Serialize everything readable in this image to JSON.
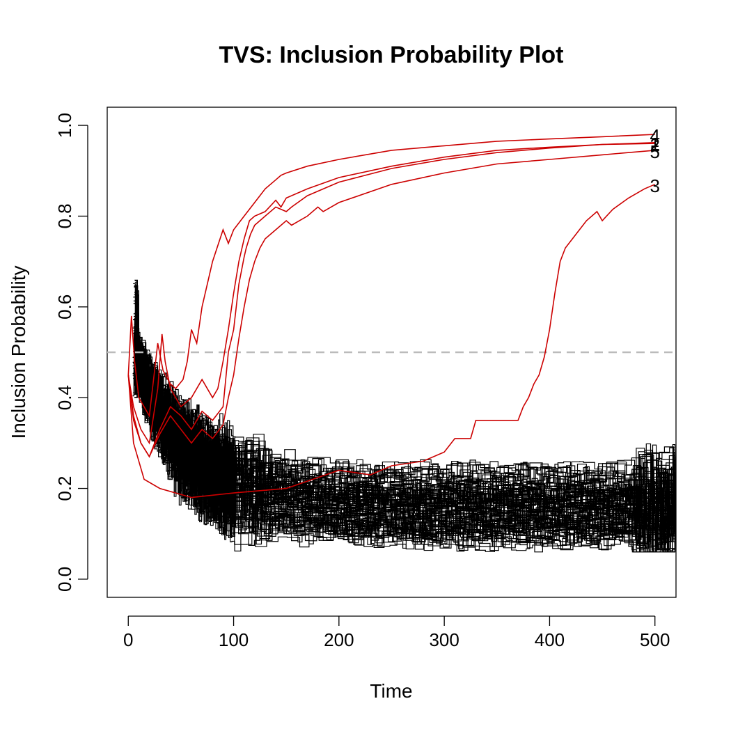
{
  "chart_data": {
    "type": "line",
    "title": "TVS: Inclusion Probability Plot",
    "xlabel": "Time",
    "ylabel": "Inclusion Probability",
    "xlim": [
      -20,
      520
    ],
    "ylim": [
      -0.04,
      1.04
    ],
    "x_ticks": [
      0,
      100,
      200,
      300,
      400,
      500
    ],
    "y_ticks": [
      "0.0",
      "0.2",
      "0.4",
      "0.6",
      "0.8",
      "1.0"
    ],
    "threshold": 0.5,
    "colors": {
      "selected": "#cc0000",
      "other": "#000000",
      "threshold": "#bbbbbb"
    },
    "series": [
      {
        "label": "4",
        "color": "#cc0000",
        "points": [
          [
            0,
            0.45
          ],
          [
            3,
            0.58
          ],
          [
            6,
            0.48
          ],
          [
            10,
            0.4
          ],
          [
            20,
            0.36
          ],
          [
            28,
            0.52
          ],
          [
            33,
            0.46
          ],
          [
            40,
            0.43
          ],
          [
            45,
            0.42
          ],
          [
            52,
            0.44
          ],
          [
            56,
            0.48
          ],
          [
            60,
            0.55
          ],
          [
            65,
            0.52
          ],
          [
            70,
            0.6
          ],
          [
            80,
            0.7
          ],
          [
            90,
            0.77
          ],
          [
            95,
            0.74
          ],
          [
            100,
            0.77
          ],
          [
            110,
            0.8
          ],
          [
            120,
            0.83
          ],
          [
            130,
            0.86
          ],
          [
            140,
            0.88
          ],
          [
            145,
            0.89
          ],
          [
            150,
            0.895
          ],
          [
            170,
            0.91
          ],
          [
            200,
            0.925
          ],
          [
            250,
            0.945
          ],
          [
            300,
            0.955
          ],
          [
            350,
            0.965
          ],
          [
            400,
            0.97
          ],
          [
            450,
            0.975
          ],
          [
            500,
            0.98
          ]
        ]
      },
      {
        "label": "1",
        "color": "#cc0000",
        "points": [
          [
            0,
            0.45
          ],
          [
            5,
            0.38
          ],
          [
            12,
            0.33
          ],
          [
            20,
            0.3
          ],
          [
            28,
            0.42
          ],
          [
            32,
            0.54
          ],
          [
            35,
            0.48
          ],
          [
            40,
            0.42
          ],
          [
            50,
            0.38
          ],
          [
            60,
            0.4
          ],
          [
            70,
            0.44
          ],
          [
            80,
            0.4
          ],
          [
            85,
            0.42
          ],
          [
            90,
            0.48
          ],
          [
            95,
            0.55
          ],
          [
            100,
            0.63
          ],
          [
            105,
            0.7
          ],
          [
            110,
            0.75
          ],
          [
            115,
            0.79
          ],
          [
            120,
            0.8
          ],
          [
            130,
            0.81
          ],
          [
            140,
            0.835
          ],
          [
            145,
            0.82
          ],
          [
            150,
            0.84
          ],
          [
            170,
            0.86
          ],
          [
            200,
            0.885
          ],
          [
            250,
            0.91
          ],
          [
            300,
            0.93
          ],
          [
            350,
            0.945
          ],
          [
            400,
            0.952
          ],
          [
            450,
            0.958
          ],
          [
            500,
            0.962
          ]
        ]
      },
      {
        "label": "2",
        "color": "#cc0000",
        "points": [
          [
            0,
            0.45
          ],
          [
            5,
            0.36
          ],
          [
            12,
            0.3
          ],
          [
            20,
            0.27
          ],
          [
            30,
            0.33
          ],
          [
            40,
            0.38
          ],
          [
            50,
            0.36
          ],
          [
            60,
            0.33
          ],
          [
            70,
            0.37
          ],
          [
            80,
            0.35
          ],
          [
            90,
            0.38
          ],
          [
            95,
            0.5
          ],
          [
            100,
            0.55
          ],
          [
            105,
            0.65
          ],
          [
            110,
            0.71
          ],
          [
            112,
            0.73
          ],
          [
            116,
            0.76
          ],
          [
            120,
            0.78
          ],
          [
            130,
            0.8
          ],
          [
            140,
            0.82
          ],
          [
            150,
            0.81
          ],
          [
            155,
            0.82
          ],
          [
            170,
            0.845
          ],
          [
            200,
            0.875
          ],
          [
            250,
            0.905
          ],
          [
            300,
            0.925
          ],
          [
            350,
            0.94
          ],
          [
            400,
            0.95
          ],
          [
            450,
            0.958
          ],
          [
            500,
            0.96
          ]
        ]
      },
      {
        "label": "5",
        "color": "#cc0000",
        "points": [
          [
            0,
            0.45
          ],
          [
            5,
            0.35
          ],
          [
            12,
            0.3
          ],
          [
            20,
            0.27
          ],
          [
            30,
            0.32
          ],
          [
            40,
            0.36
          ],
          [
            50,
            0.33
          ],
          [
            60,
            0.3
          ],
          [
            70,
            0.33
          ],
          [
            80,
            0.31
          ],
          [
            90,
            0.34
          ],
          [
            95,
            0.4
          ],
          [
            100,
            0.45
          ],
          [
            105,
            0.53
          ],
          [
            110,
            0.6
          ],
          [
            115,
            0.66
          ],
          [
            120,
            0.7
          ],
          [
            125,
            0.73
          ],
          [
            130,
            0.75
          ],
          [
            140,
            0.77
          ],
          [
            150,
            0.79
          ],
          [
            155,
            0.78
          ],
          [
            170,
            0.8
          ],
          [
            180,
            0.82
          ],
          [
            185,
            0.81
          ],
          [
            200,
            0.83
          ],
          [
            250,
            0.87
          ],
          [
            300,
            0.895
          ],
          [
            350,
            0.915
          ],
          [
            400,
            0.925
          ],
          [
            450,
            0.935
          ],
          [
            500,
            0.945
          ]
        ]
      },
      {
        "label": "3",
        "color": "#cc0000",
        "points": [
          [
            0,
            0.45
          ],
          [
            5,
            0.3
          ],
          [
            15,
            0.22
          ],
          [
            30,
            0.2
          ],
          [
            60,
            0.18
          ],
          [
            100,
            0.19
          ],
          [
            150,
            0.2
          ],
          [
            200,
            0.24
          ],
          [
            230,
            0.23
          ],
          [
            250,
            0.25
          ],
          [
            280,
            0.26
          ],
          [
            300,
            0.28
          ],
          [
            310,
            0.31
          ],
          [
            325,
            0.31
          ],
          [
            330,
            0.35
          ],
          [
            370,
            0.35
          ],
          [
            375,
            0.38
          ],
          [
            380,
            0.4
          ],
          [
            385,
            0.43
          ],
          [
            390,
            0.45
          ],
          [
            395,
            0.49
          ],
          [
            400,
            0.55
          ],
          [
            405,
            0.63
          ],
          [
            410,
            0.7
          ],
          [
            415,
            0.73
          ],
          [
            425,
            0.76
          ],
          [
            435,
            0.79
          ],
          [
            445,
            0.81
          ],
          [
            450,
            0.79
          ],
          [
            460,
            0.815
          ],
          [
            475,
            0.84
          ],
          [
            490,
            0.86
          ],
          [
            500,
            0.87
          ]
        ]
      }
    ]
  }
}
